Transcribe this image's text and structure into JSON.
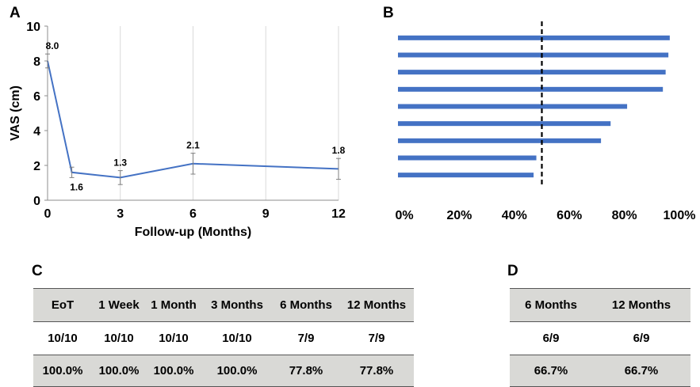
{
  "labels": {
    "a": "A",
    "b": "B",
    "c": "C",
    "d": "D"
  },
  "chart_data": [
    {
      "type": "line",
      "panel": "A",
      "xlabel": "Follow-up (Months)",
      "ylabel": "VAS (cm)",
      "xticks": [
        0,
        3,
        6,
        9,
        12
      ],
      "yticks": [
        0,
        2,
        4,
        6,
        8,
        10
      ],
      "xlim": [
        0,
        12
      ],
      "ylim": [
        0,
        10
      ],
      "grid": "vertical",
      "series": [
        {
          "color": "#4472c4",
          "points": [
            {
              "x": 0,
              "y": 8.0,
              "label": "8.0",
              "err": 0.4
            },
            {
              "x": 1,
              "y": 1.6,
              "label": "1.6",
              "err": 0.3
            },
            {
              "x": 3,
              "y": 1.3,
              "label": "1.3",
              "err": 0.4
            },
            {
              "x": 6,
              "y": 2.1,
              "label": "2.1",
              "err": 0.6
            },
            {
              "x": 12,
              "y": 1.8,
              "label": "1.8",
              "err": 0.6
            }
          ]
        }
      ]
    },
    {
      "type": "bar",
      "orientation": "horizontal",
      "panel": "B",
      "xticks": [
        "0%",
        "20%",
        "40%",
        "60%",
        "80%",
        "100%"
      ],
      "xlim": [
        0,
        100
      ],
      "reference_line": 50,
      "color": "#4472c4",
      "values": [
        96.5,
        96,
        95,
        94,
        81,
        75,
        71.5,
        48,
        47
      ]
    }
  ],
  "table_c": {
    "headers": [
      "EoT",
      "1 Week",
      "1 Month",
      "3 Months",
      "6 Months",
      "12 Months"
    ],
    "counts": [
      "10/10",
      "10/10",
      "10/10",
      "10/10",
      "7/9",
      "7/9"
    ],
    "percents": [
      "100.0%",
      "100.0%",
      "100.0%",
      "100.0%",
      "77.8%",
      "77.8%"
    ]
  },
  "table_d": {
    "headers": [
      "6 Months",
      "12 Months"
    ],
    "counts": [
      "6/9",
      "6/9"
    ],
    "percents": [
      "66.7%",
      "66.7%"
    ]
  }
}
